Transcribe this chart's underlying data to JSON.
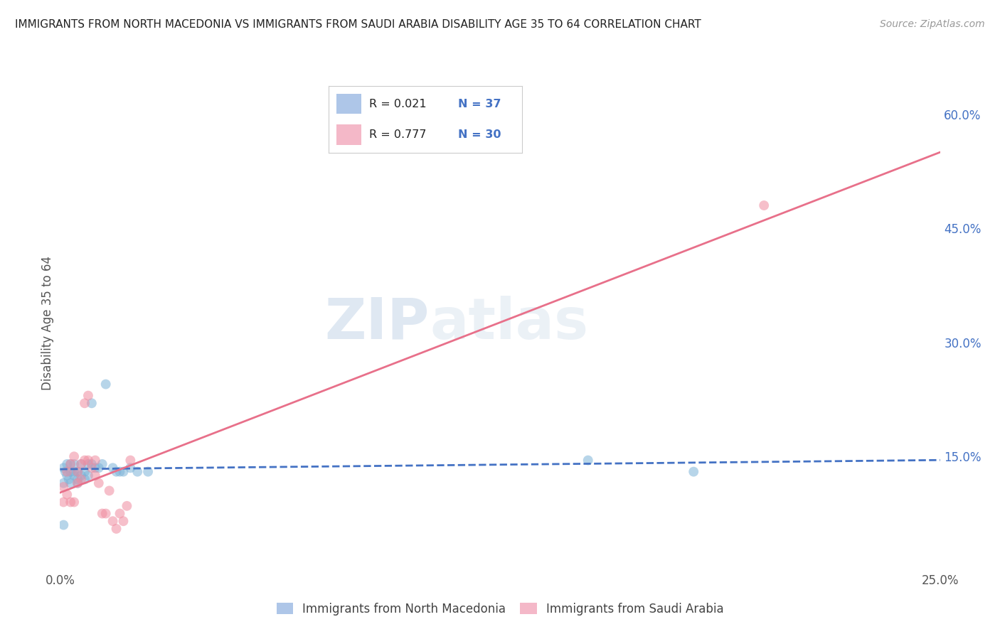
{
  "title": "IMMIGRANTS FROM NORTH MACEDONIA VS IMMIGRANTS FROM SAUDI ARABIA DISABILITY AGE 35 TO 64 CORRELATION CHART",
  "source": "Source: ZipAtlas.com",
  "ylabel": "Disability Age 35 to 64",
  "watermark_zip": "ZIP",
  "watermark_atlas": "atlas",
  "x_min": 0.0,
  "x_max": 0.25,
  "y_min": 0.0,
  "y_max": 0.65,
  "x_ticks": [
    0.0,
    0.05,
    0.1,
    0.15,
    0.2,
    0.25
  ],
  "x_tick_labels": [
    "0.0%",
    "",
    "",
    "",
    "",
    "25.0%"
  ],
  "y_ticks_right": [
    0.15,
    0.3,
    0.45,
    0.6
  ],
  "y_tick_labels_right": [
    "15.0%",
    "30.0%",
    "45.0%",
    "60.0%"
  ],
  "legend_color1": "#aec6e8",
  "legend_color2": "#f4b8c8",
  "scatter_color1": "#7db3d8",
  "scatter_color2": "#f08ca0",
  "line_color1": "#4472c4",
  "line_color2": "#e8708a",
  "background_color": "#ffffff",
  "grid_color": "#d0d0d0",
  "title_color": "#222222",
  "right_axis_color": "#4472c4",
  "north_macedonia_x": [
    0.001,
    0.001,
    0.0015,
    0.002,
    0.002,
    0.0025,
    0.003,
    0.003,
    0.003,
    0.004,
    0.004,
    0.004,
    0.005,
    0.005,
    0.005,
    0.006,
    0.006,
    0.007,
    0.007,
    0.008,
    0.008,
    0.009,
    0.009,
    0.01,
    0.011,
    0.012,
    0.013,
    0.015,
    0.016,
    0.017,
    0.018,
    0.02,
    0.022,
    0.025,
    0.15,
    0.18,
    0.001
  ],
  "north_macedonia_y": [
    0.115,
    0.135,
    0.13,
    0.125,
    0.14,
    0.12,
    0.13,
    0.14,
    0.115,
    0.13,
    0.14,
    0.125,
    0.13,
    0.12,
    0.115,
    0.14,
    0.125,
    0.13,
    0.12,
    0.14,
    0.125,
    0.14,
    0.22,
    0.135,
    0.135,
    0.14,
    0.245,
    0.135,
    0.13,
    0.13,
    0.13,
    0.135,
    0.13,
    0.13,
    0.145,
    0.13,
    0.06
  ],
  "saudi_arabia_x": [
    0.001,
    0.001,
    0.002,
    0.002,
    0.003,
    0.003,
    0.004,
    0.004,
    0.005,
    0.005,
    0.006,
    0.006,
    0.007,
    0.007,
    0.008,
    0.008,
    0.009,
    0.01,
    0.01,
    0.011,
    0.012,
    0.013,
    0.014,
    0.015,
    0.016,
    0.017,
    0.018,
    0.019,
    0.02,
    0.2
  ],
  "saudi_arabia_y": [
    0.09,
    0.11,
    0.1,
    0.13,
    0.09,
    0.14,
    0.09,
    0.15,
    0.13,
    0.115,
    0.14,
    0.12,
    0.145,
    0.22,
    0.23,
    0.145,
    0.135,
    0.125,
    0.145,
    0.115,
    0.075,
    0.075,
    0.105,
    0.065,
    0.055,
    0.075,
    0.065,
    0.085,
    0.145,
    0.48
  ],
  "marker_size": 100,
  "marker_alpha": 0.55
}
